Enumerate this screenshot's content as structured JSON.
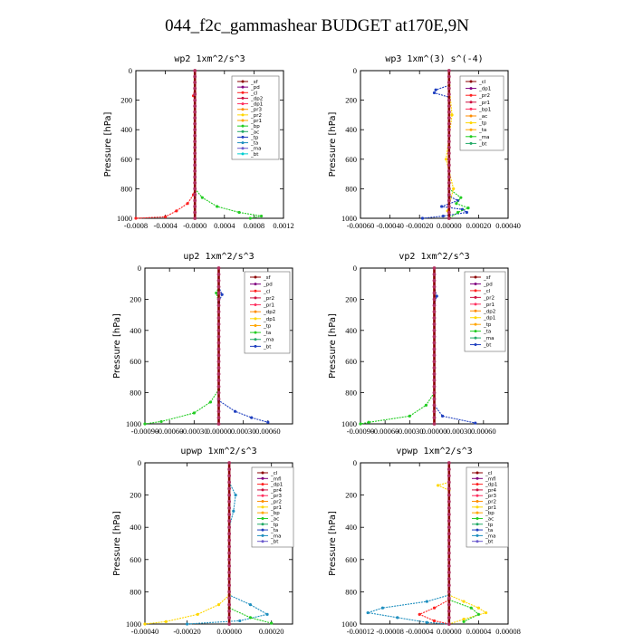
{
  "figure_title": "044_f2c_gammashear  BUDGET at170E,9N",
  "chart_data": [
    {
      "type": "line",
      "title": "wp2  1xm^2/s^3",
      "ylabel": "Pressure [hPa]",
      "xlim": [
        -0.0008,
        0.0012
      ],
      "xticks": [
        "-0.0008",
        "-0.0004",
        "-0.0000",
        "0.0004",
        "0.0008",
        "0.0012"
      ],
      "ylim": [
        1000,
        0
      ],
      "yticks": [
        "0",
        "200",
        "400",
        "600",
        "800",
        "1000"
      ],
      "legend": [
        "_sf",
        "_pd",
        "_cl",
        "_dp2",
        "_dp1",
        "_pr3",
        "_pr2",
        "_pr1",
        "_bp",
        "_ac",
        "_tp",
        "_ta",
        "_ma",
        "_bt"
      ],
      "series": [
        {
          "name": "_pr1",
          "color": "#ff2020",
          "values": [
            [
              0,
              0
            ],
            [
              0,
              150
            ],
            [
              -2e-05,
              170
            ],
            [
              0,
              200
            ],
            [
              0,
              800
            ],
            [
              -2e-05,
              840
            ],
            [
              -0.0001,
              900
            ],
            [
              -0.00025,
              950
            ],
            [
              -0.0004,
              990
            ],
            [
              -0.0008,
              1000
            ]
          ]
        },
        {
          "name": "_bp",
          "color": "#22cc22",
          "values": [
            [
              0,
              800
            ],
            [
              0.0001,
              860
            ],
            [
              0.0003,
              920
            ],
            [
              0.0006,
              960
            ],
            [
              0.0009,
              985
            ],
            [
              0.00075,
              1000
            ]
          ]
        },
        {
          "name": "_bt",
          "color": "#8b0000",
          "values": [
            [
              0,
              0
            ],
            [
              0,
              1000
            ]
          ]
        }
      ]
    },
    {
      "type": "line",
      "title": "wp3  1xm^(3) s^(-4)",
      "ylabel": "Pressure [hPa]",
      "xlim": [
        -0.0006,
        0.0004
      ],
      "xticks": [
        "-0.00060",
        "-0.00040",
        "-0.00020",
        "0.00000",
        "0.00020",
        "0.00040"
      ],
      "ylim": [
        1000,
        0
      ],
      "yticks": [
        "0",
        "200",
        "400",
        "600",
        "800",
        "1000"
      ],
      "legend": [
        "_cl",
        "_dp1",
        "_pr2",
        "_pr1",
        "_bp1",
        "_ac",
        "_tp",
        "_ta",
        "_ma",
        "_bt"
      ],
      "series": [
        {
          "name": "_tp",
          "color": "#1f3fbf",
          "values": [
            [
              0,
              100
            ],
            [
              -9e-05,
              130
            ],
            [
              -0.0001,
              150
            ],
            [
              0,
              180
            ],
            [
              0,
              850
            ],
            [
              6e-05,
              880
            ],
            [
              -5e-05,
              920
            ],
            [
              9e-05,
              940
            ],
            [
              0.00012,
              960
            ],
            [
              -4e-05,
              985
            ],
            [
              -0.00018,
              1000
            ]
          ]
        },
        {
          "name": "_ac",
          "color": "#22cc22",
          "values": [
            [
              0,
              800
            ],
            [
              8e-05,
              860
            ],
            [
              5e-05,
              900
            ],
            [
              0.00013,
              930
            ],
            [
              6e-05,
              960
            ],
            [
              0,
              1000
            ]
          ]
        },
        {
          "name": "_pr1",
          "color": "#ffd700",
          "values": [
            [
              0,
              100
            ],
            [
              2e-05,
              300
            ],
            [
              -2e-05,
              600
            ],
            [
              3e-05,
              800
            ],
            [
              -1e-05,
              950
            ],
            [
              0,
              1000
            ]
          ]
        },
        {
          "name": "_bt",
          "color": "#8b0000",
          "values": [
            [
              0,
              0
            ],
            [
              0,
              1000
            ]
          ]
        }
      ]
    },
    {
      "type": "line",
      "title": "up2  1xm^2/s^3",
      "ylabel": "Pressure [hPa]",
      "xlim": [
        -0.0009,
        0.0009
      ],
      "xticks": [
        "-0.00090",
        "-0.00060",
        "-0.00030",
        "0.00000",
        "0.00030",
        "0.00060"
      ],
      "ylim": [
        1000,
        0
      ],
      "yticks": [
        "0",
        "200",
        "400",
        "600",
        "800",
        "1000"
      ],
      "legend": [
        "_sf",
        "_pd",
        "_cl",
        "_pr2",
        "_pr1",
        "_dp2",
        "_dp1",
        "_tp",
        "_ta",
        "_ma",
        "_bt"
      ],
      "series": [
        {
          "name": "_dp1",
          "color": "#22cc22",
          "values": [
            [
              0,
              120
            ],
            [
              -3e-05,
              160
            ],
            [
              0,
              220
            ],
            [
              0,
              780
            ],
            [
              -0.0001,
              860
            ],
            [
              -0.0003,
              930
            ],
            [
              -0.0007,
              985
            ],
            [
              -0.0009,
              1000
            ]
          ]
        },
        {
          "name": "_ta",
          "color": "#1f3fbf",
          "values": [
            [
              0,
              120
            ],
            [
              4e-05,
              170
            ],
            [
              0,
              220
            ],
            [
              0,
              850
            ],
            [
              0.0002,
              920
            ],
            [
              0.0004,
              960
            ],
            [
              0.0006,
              990
            ]
          ]
        },
        {
          "name": "_bt",
          "color": "#8b0000",
          "values": [
            [
              0,
              0
            ],
            [
              0,
              1000
            ]
          ]
        }
      ]
    },
    {
      "type": "line",
      "title": "vp2  1xm^2/s^3",
      "ylabel": "Pressure [hPa]",
      "xlim": [
        -0.0009,
        0.0009
      ],
      "xticks": [
        "-0.00090",
        "-0.00060",
        "-0.00030",
        "0.00000",
        "0.00030",
        "0.00060"
      ],
      "ylim": [
        1000,
        0
      ],
      "yticks": [
        "0",
        "200",
        "400",
        "600",
        "800",
        "1000"
      ],
      "legend": [
        "_sf",
        "_pd",
        "_cl",
        "_pr2",
        "_pr1",
        "_dp2",
        "_dp1",
        "_tp",
        "_ta",
        "_ma",
        "_bt"
      ],
      "series": [
        {
          "name": "_dp1",
          "color": "#22cc22",
          "values": [
            [
              0,
              800
            ],
            [
              -0.0001,
              880
            ],
            [
              -0.0003,
              950
            ],
            [
              -0.0008,
              990
            ],
            [
              -0.0009,
              1000
            ]
          ]
        },
        {
          "name": "_ta",
          "color": "#1f3fbf",
          "values": [
            [
              0,
              120
            ],
            [
              3e-05,
              180
            ],
            [
              0,
              230
            ],
            [
              0,
              880
            ],
            [
              0.0001,
              950
            ],
            [
              0.0005,
              995
            ]
          ]
        },
        {
          "name": "_bt",
          "color": "#8b0000",
          "values": [
            [
              0,
              0
            ],
            [
              0,
              1000
            ]
          ]
        }
      ]
    },
    {
      "type": "line",
      "title": "upwp  1xm^2/s^3",
      "ylabel": "Pressure [hPa]",
      "xlim": [
        -0.0004,
        0.0003
      ],
      "xticks": [
        "-0.00040",
        "-0.00020",
        "0.00000",
        "0.00020"
      ],
      "ylim": [
        1000,
        0
      ],
      "yticks": [
        "0",
        "200",
        "400",
        "600",
        "800",
        "1000"
      ],
      "legend": [
        "_cl",
        "_mfl",
        "_dp1",
        "_pr4",
        "_pr3",
        "_pr2",
        "_pr1",
        "_bp",
        "_ac",
        "_tp",
        "_ta",
        "_ma",
        "_bt"
      ],
      "series": [
        {
          "name": "_tp",
          "color": "#1f8fbf",
          "values": [
            [
              0,
              120
            ],
            [
              3e-05,
              200
            ],
            [
              2e-05,
              300
            ],
            [
              0,
              400
            ],
            [
              0,
              820
            ],
            [
              0.0001,
              880
            ],
            [
              0.00018,
              940
            ],
            [
              5e-05,
              980
            ],
            [
              -0.0002,
              1000
            ]
          ]
        },
        {
          "name": "_pr1",
          "color": "#ffd700",
          "values": [
            [
              0,
              820
            ],
            [
              -5e-05,
              880
            ],
            [
              -0.00015,
              940
            ],
            [
              -0.0003,
              985
            ],
            [
              -0.0004,
              1000
            ]
          ]
        },
        {
          "name": "_dp1",
          "color": "#22cc22",
          "values": [
            [
              0,
              900
            ],
            [
              0.0001,
              960
            ],
            [
              0.0002,
              995
            ]
          ]
        },
        {
          "name": "_bt",
          "color": "#8b0000",
          "values": [
            [
              0,
              0
            ],
            [
              0,
              1000
            ]
          ]
        }
      ]
    },
    {
      "type": "line",
      "title": "vpwp  1xm^2/s^3",
      "ylabel": "Pressure [hPa]",
      "xlim": [
        -0.00012,
        8e-05
      ],
      "xticks": [
        "-0.00012",
        "-0.00008",
        "-0.00004",
        "0.00000",
        "0.00004",
        "0.00008"
      ],
      "ylim": [
        1000,
        0
      ],
      "yticks": [
        "0",
        "200",
        "400",
        "600",
        "800",
        "1000"
      ],
      "legend": [
        "_cl",
        "_mfl",
        "_dp1",
        "_pr4",
        "_pr3",
        "_pr2",
        "_pr1",
        "_bp",
        "_ac",
        "_tp",
        "_ta",
        "_ma",
        "_bt"
      ],
      "series": [
        {
          "name": "_pr1",
          "color": "#ffd700",
          "values": [
            [
              0,
              120
            ],
            [
              -1.5e-05,
              140
            ],
            [
              0,
              170
            ],
            [
              0,
              820
            ],
            [
              2e-05,
              860
            ],
            [
              4e-05,
              900
            ],
            [
              5e-05,
              930
            ],
            [
              2e-05,
              970
            ],
            [
              0,
              1000
            ]
          ]
        },
        {
          "name": "_ac",
          "color": "#1f8fbf",
          "values": [
            [
              0,
              820
            ],
            [
              -3e-05,
              860
            ],
            [
              -9e-05,
              900
            ],
            [
              -0.00011,
              930
            ],
            [
              -7e-05,
              960
            ],
            [
              -3e-05,
              990
            ],
            [
              0,
              1000
            ]
          ]
        },
        {
          "name": "_cl",
          "color": "#ff2020",
          "values": [
            [
              0,
              850
            ],
            [
              -2e-05,
              900
            ],
            [
              -4e-05,
              940
            ],
            [
              -2e-05,
              980
            ],
            [
              0,
              1000
            ]
          ]
        },
        {
          "name": "_dp1",
          "color": "#22cc22",
          "values": [
            [
              0,
              850
            ],
            [
              3e-05,
              900
            ],
            [
              4e-05,
              940
            ],
            [
              2e-05,
              985
            ]
          ]
        },
        {
          "name": "_bt",
          "color": "#8b0000",
          "values": [
            [
              0,
              0
            ],
            [
              0,
              1000
            ]
          ]
        }
      ]
    }
  ]
}
